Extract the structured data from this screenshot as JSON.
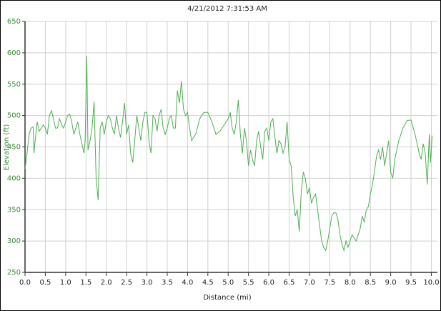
{
  "chart_data": {
    "type": "line",
    "title": "4/21/2012 7:31:53 AM",
    "x_label": "Distance (mi)",
    "y_label": "Elevation (ft)",
    "xlim": [
      0,
      10.15
    ],
    "ylim": [
      250,
      650
    ],
    "xticks": [
      {
        "value": 0,
        "label": "0.0"
      },
      0.5,
      {
        "value": 1,
        "label": "1.0"
      },
      1.5,
      {
        "value": 2,
        "label": "2.0"
      },
      2.5,
      {
        "value": 3,
        "label": "3.0"
      },
      3.5,
      {
        "value": 4,
        "label": "4.0"
      },
      4.5,
      {
        "value": 5,
        "label": "5.0"
      },
      5.5,
      {
        "value": 6,
        "label": "6.0"
      },
      6.5,
      {
        "value": 7,
        "label": "7.0"
      },
      7.5,
      {
        "value": 8,
        "label": "8.0"
      },
      8.5,
      {
        "value": 9,
        "label": "9.0"
      },
      9.5,
      {
        "value": 10,
        "label": "10.0"
      }
    ],
    "yticks": [
      250,
      300,
      350,
      400,
      450,
      500,
      550,
      600,
      650
    ],
    "grid": true,
    "series": [
      {
        "color": "#4caf50",
        "x": [
          0.0,
          0.05,
          0.1,
          0.15,
          0.2,
          0.22,
          0.25,
          0.3,
          0.35,
          0.4,
          0.45,
          0.5,
          0.55,
          0.6,
          0.65,
          0.7,
          0.75,
          0.8,
          0.85,
          0.9,
          0.95,
          1.0,
          1.05,
          1.1,
          1.15,
          1.2,
          1.25,
          1.3,
          1.35,
          1.4,
          1.45,
          1.48,
          1.52,
          1.55,
          1.6,
          1.65,
          1.7,
          1.75,
          1.8,
          1.85,
          1.9,
          1.95,
          2.0,
          2.05,
          2.1,
          2.15,
          2.2,
          2.25,
          2.3,
          2.35,
          2.4,
          2.45,
          2.5,
          2.55,
          2.6,
          2.65,
          2.7,
          2.75,
          2.8,
          2.85,
          2.9,
          2.95,
          3.0,
          3.05,
          3.1,
          3.15,
          3.2,
          3.25,
          3.3,
          3.35,
          3.4,
          3.45,
          3.5,
          3.55,
          3.6,
          3.65,
          3.7,
          3.75,
          3.8,
          3.85,
          3.9,
          3.95,
          4.0,
          4.05,
          4.1,
          4.2,
          4.3,
          4.4,
          4.5,
          4.6,
          4.7,
          4.8,
          4.9,
          5.0,
          5.05,
          5.1,
          5.15,
          5.2,
          5.25,
          5.3,
          5.35,
          5.4,
          5.45,
          5.5,
          5.55,
          5.6,
          5.65,
          5.7,
          5.75,
          5.8,
          5.85,
          5.9,
          5.95,
          6.0,
          6.05,
          6.1,
          6.15,
          6.2,
          6.25,
          6.3,
          6.35,
          6.4,
          6.45,
          6.5,
          6.55,
          6.6,
          6.65,
          6.7,
          6.75,
          6.8,
          6.85,
          6.9,
          6.95,
          7.0,
          7.05,
          7.1,
          7.15,
          7.2,
          7.25,
          7.3,
          7.35,
          7.4,
          7.45,
          7.5,
          7.55,
          7.6,
          7.65,
          7.7,
          7.75,
          7.8,
          7.85,
          7.9,
          7.95,
          8.0,
          8.05,
          8.1,
          8.15,
          8.2,
          8.25,
          8.3,
          8.35,
          8.4,
          8.45,
          8.5,
          8.55,
          8.6,
          8.65,
          8.7,
          8.75,
          8.8,
          8.85,
          8.9,
          8.95,
          9.0,
          9.05,
          9.1,
          9.2,
          9.3,
          9.4,
          9.5,
          9.6,
          9.7,
          9.75,
          9.8,
          9.85,
          9.9,
          9.95,
          9.98,
          10.02
        ],
        "values": [
          415,
          440,
          470,
          480,
          482,
          440,
          460,
          490,
          475,
          480,
          485,
          480,
          470,
          500,
          508,
          495,
          480,
          480,
          495,
          485,
          480,
          490,
          500,
          502,
          490,
          470,
          480,
          490,
          470,
          455,
          440,
          460,
          595,
          445,
          460,
          480,
          522,
          400,
          365,
          480,
          490,
          470,
          490,
          500,
          495,
          480,
          470,
          500,
          480,
          465,
          490,
          520,
          470,
          485,
          440,
          425,
          460,
          500,
          480,
          460,
          490,
          505,
          505,
          460,
          440,
          500,
          495,
          475,
          500,
          510,
          480,
          470,
          480,
          495,
          500,
          480,
          480,
          540,
          520,
          555,
          510,
          500,
          505,
          480,
          460,
          470,
          495,
          505,
          505,
          490,
          470,
          475,
          485,
          495,
          505,
          480,
          470,
          490,
          525,
          470,
          440,
          480,
          460,
          420,
          445,
          430,
          420,
          460,
          475,
          450,
          430,
          475,
          480,
          460,
          490,
          495,
          465,
          440,
          460,
          455,
          440,
          450,
          490,
          430,
          420,
          370,
          340,
          350,
          315,
          380,
          410,
          400,
          375,
          385,
          360,
          370,
          375,
          350,
          325,
          300,
          290,
          285,
          300,
          320,
          340,
          345,
          345,
          335,
          310,
          295,
          285,
          300,
          290,
          300,
          310,
          305,
          300,
          310,
          320,
          340,
          330,
          350,
          355,
          375,
          390,
          410,
          435,
          445,
          430,
          450,
          420,
          440,
          460,
          410,
          400,
          430,
          460,
          480,
          492,
          493,
          470,
          440,
          430,
          455,
          440,
          390,
          470,
          425,
          468
        ]
      }
    ]
  }
}
